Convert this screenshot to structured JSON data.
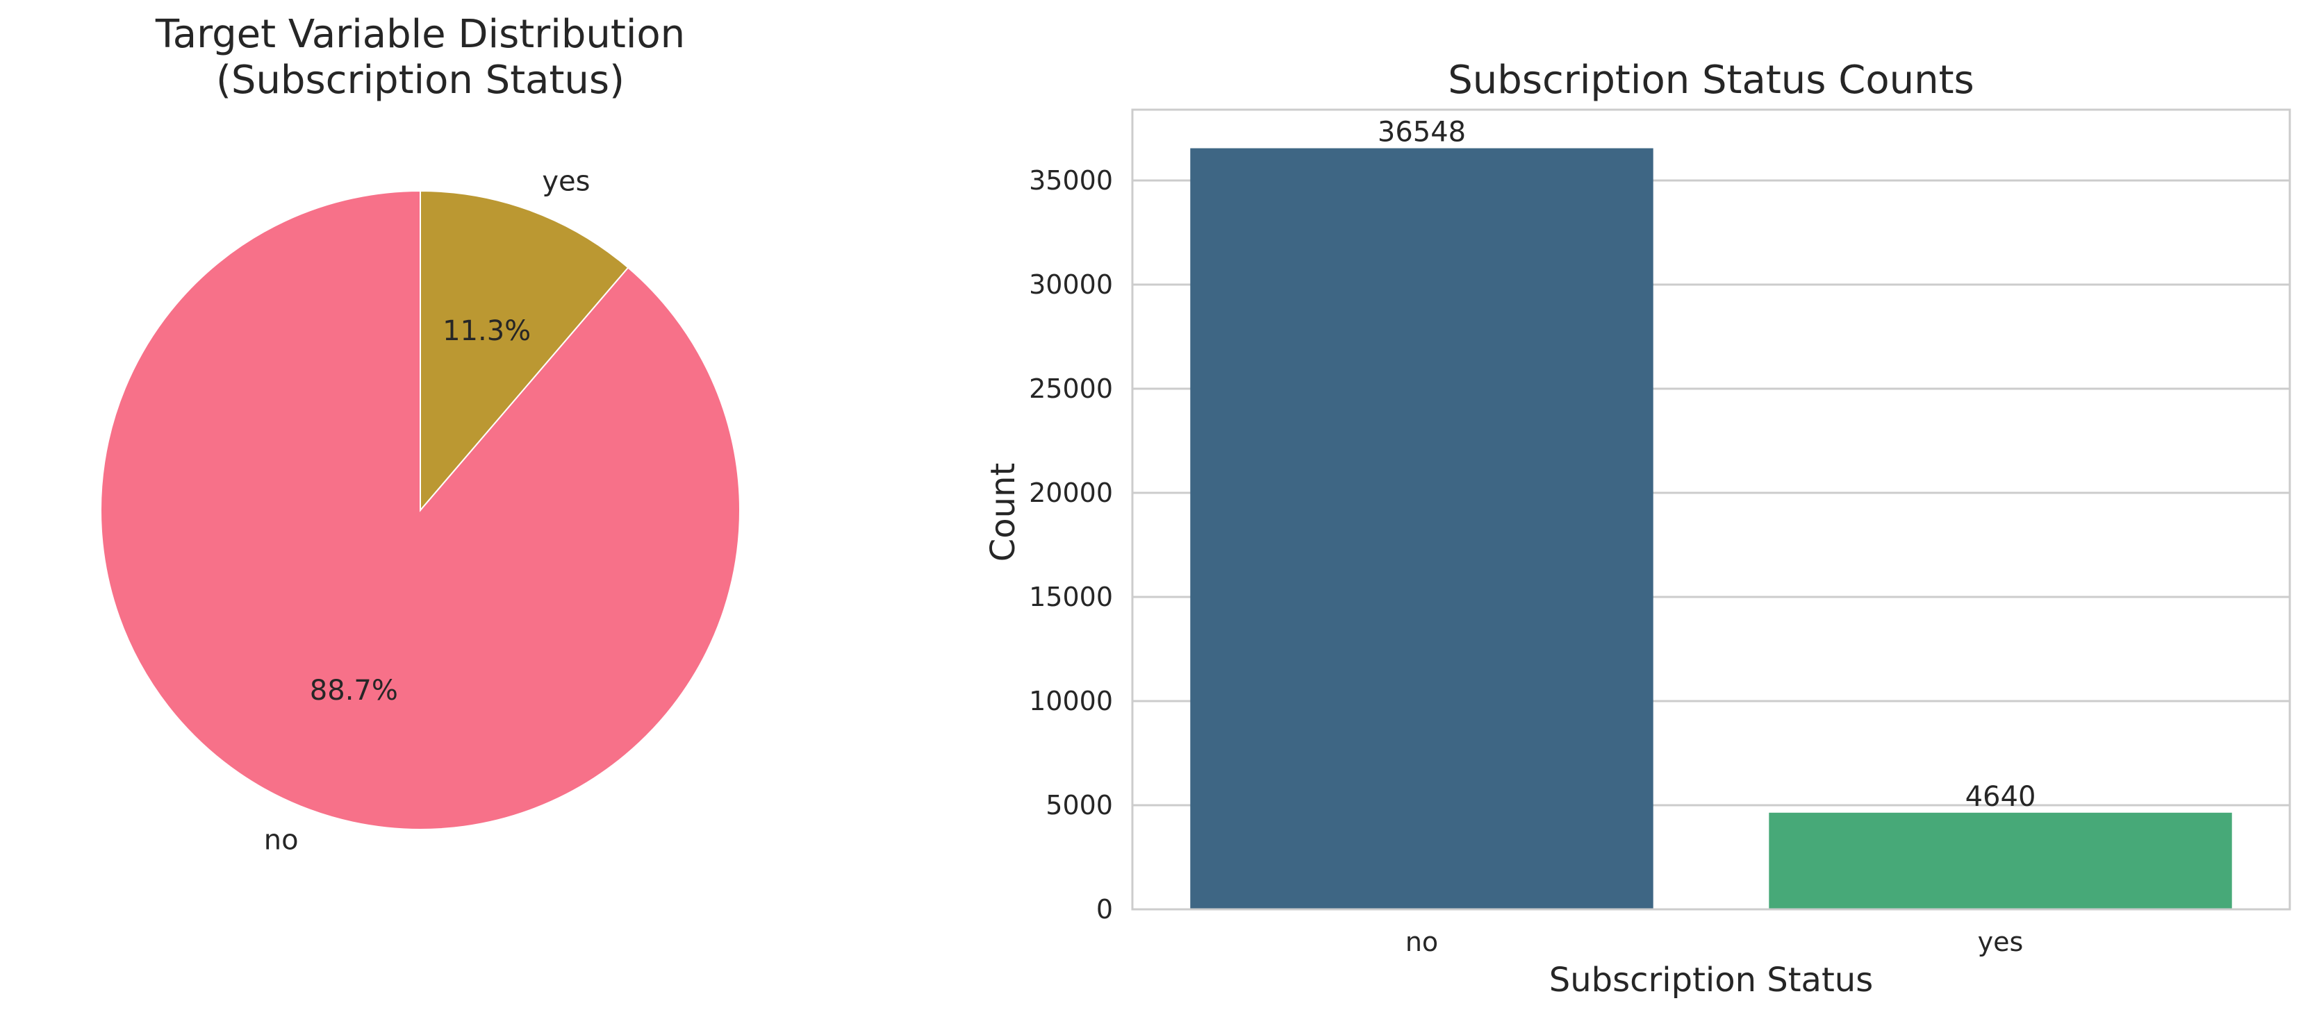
{
  "chart_data": [
    {
      "type": "pie",
      "title": [
        "Target Variable Distribution",
        "(Subscription Status)"
      ],
      "slices": [
        {
          "label": "no",
          "value": 36548,
          "percent_label": "88.7%",
          "color": "#f77189"
        },
        {
          "label": "yes",
          "value": 4640,
          "percent_label": "11.3%",
          "color": "#bb9832"
        }
      ],
      "start_angle_deg": 90,
      "direction": "counterclockwise"
    },
    {
      "type": "bar",
      "title": "Subscription Status Counts",
      "xlabel": "Subscription Status",
      "ylabel": "Count",
      "categories": [
        "no",
        "yes"
      ],
      "values": [
        36548,
        4640
      ],
      "data_labels": [
        "36548",
        "4640"
      ],
      "colors": [
        "#3e6684",
        "#47a978"
      ],
      "ylim": [
        0,
        38400
      ],
      "yticks": [
        0,
        5000,
        10000,
        15000,
        20000,
        25000,
        30000,
        35000
      ],
      "grid": "horizontal"
    }
  ]
}
